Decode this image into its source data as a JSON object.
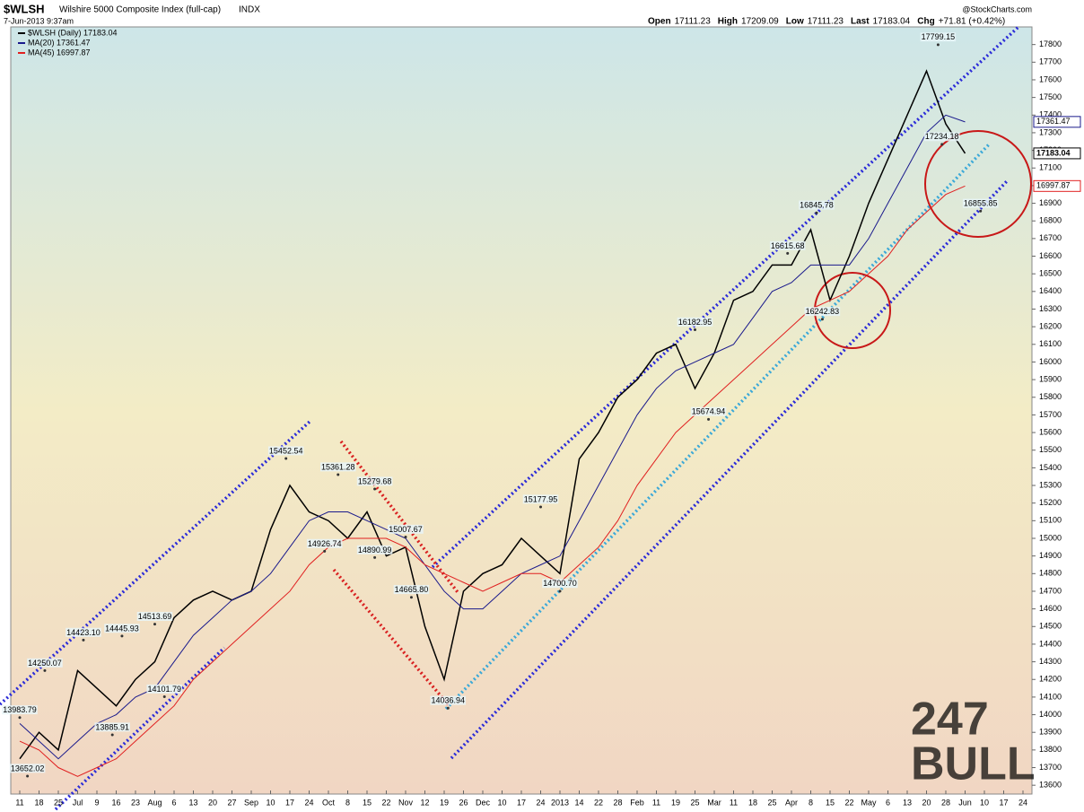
{
  "chart_data": {
    "type": "line",
    "symbol": "$WLSH",
    "title": "Wilshire 5000 Composite Index (full-cap)",
    "exchange": "INDX",
    "date": "7-Jun-2013 9:37am",
    "source": "@StockCharts.com",
    "stats": [
      {
        "label": "Open",
        "value": 17111.23
      },
      {
        "label": "High",
        "value": 17209.09
      },
      {
        "label": "Low",
        "value": 17111.23
      },
      {
        "label": "Last",
        "value": 17183.04
      },
      {
        "label": "Chg",
        "value": "+71.81 (+0.42%)"
      }
    ],
    "watermark": [
      "247",
      "BULL"
    ],
    "categories": [
      "11",
      "18",
      "25",
      "Jul",
      "9",
      "16",
      "23",
      "Aug",
      "6",
      "13",
      "20",
      "27",
      "Sep",
      "10",
      "17",
      "24",
      "Oct",
      "8",
      "15",
      "22",
      "Nov",
      "12",
      "19",
      "26",
      "Dec",
      "10",
      "17",
      "24",
      "2013",
      "14",
      "22",
      "28",
      "Feb",
      "11",
      "19",
      "25",
      "Mar",
      "11",
      "18",
      "25",
      "Apr",
      "8",
      "15",
      "22",
      "May",
      "6",
      "13",
      "20",
      "28",
      "Jun",
      "10",
      "17",
      "24"
    ],
    "series": [
      {
        "name": "$WLSH (Daily) 17183.04",
        "color": "#000000",
        "values": [
          13750,
          13900,
          13800,
          14250,
          14150,
          14050,
          14200,
          14300,
          14550,
          14650,
          14700,
          14650,
          14700,
          15050,
          15300,
          15150,
          15100,
          15000,
          15150,
          14900,
          14950,
          14500,
          14200,
          14700,
          14800,
          14850,
          15000,
          14900,
          14800,
          15450,
          15600,
          15800,
          15900,
          16050,
          16100,
          15850,
          16050,
          16350,
          16400,
          16550,
          16550,
          16750,
          16350,
          16600,
          16900,
          17150,
          17400,
          17650,
          17350,
          17183.04,
          null,
          null,
          null
        ]
      },
      {
        "name": "MA(20) 17361.47",
        "color": "#1a1a8c",
        "values": [
          13950,
          13850,
          13750,
          13850,
          13950,
          14000,
          14100,
          14150,
          14300,
          14450,
          14550,
          14650,
          14700,
          14800,
          14950,
          15100,
          15150,
          15150,
          15100,
          15050,
          15000,
          14850,
          14700,
          14600,
          14600,
          14700,
          14800,
          14850,
          14900,
          15100,
          15300,
          15500,
          15700,
          15850,
          15950,
          16000,
          16050,
          16100,
          16250,
          16400,
          16450,
          16550,
          16550,
          16550,
          16700,
          16900,
          17100,
          17300,
          17400,
          17361.47,
          null,
          null,
          null
        ]
      },
      {
        "name": "MA(45) 16997.87",
        "color": "#e02020",
        "values": [
          13850,
          13800,
          13700,
          13650,
          13700,
          13750,
          13850,
          13950,
          14050,
          14200,
          14300,
          14400,
          14500,
          14600,
          14700,
          14850,
          14950,
          15000,
          15000,
          15000,
          14950,
          14850,
          14800,
          14750,
          14700,
          14750,
          14800,
          14800,
          14750,
          14850,
          14950,
          15100,
          15300,
          15450,
          15600,
          15700,
          15800,
          15900,
          16000,
          16100,
          16200,
          16300,
          16350,
          16400,
          16500,
          16600,
          16750,
          16850,
          16950,
          16997.87,
          null,
          null,
          null
        ]
      }
    ],
    "annotations": [
      {
        "x": 0,
        "value": 13983.79
      },
      {
        "x": 1.3,
        "value": 14250.07
      },
      {
        "x": 3.3,
        "value": 14423.1,
        "label": "14423.10"
      },
      {
        "x": 5.3,
        "value": 14445.93
      },
      {
        "x": 7,
        "value": 14513.69
      },
      {
        "x": 4.8,
        "value": 13885.91
      },
      {
        "x": 7.5,
        "value": 14101.79
      },
      {
        "x": 0.4,
        "value": 13652.02
      },
      {
        "x": 13.8,
        "value": 15452.54
      },
      {
        "x": 16.5,
        "value": 15361.28
      },
      {
        "x": 18.4,
        "value": 15279.68
      },
      {
        "x": 20,
        "value": 15007.67
      },
      {
        "x": 15.8,
        "value": 14926.74
      },
      {
        "x": 18.4,
        "value": 14890.99
      },
      {
        "x": 20.3,
        "value": 14665.8,
        "label": "14665.80"
      },
      {
        "x": 22.2,
        "value": 14036.94
      },
      {
        "x": 27,
        "value": 15177.95
      },
      {
        "x": 28,
        "value": 14700.7,
        "label": "14700.70"
      },
      {
        "x": 35,
        "value": 16182.95
      },
      {
        "x": 35.7,
        "value": 15674.94
      },
      {
        "x": 39.8,
        "value": 16615.68
      },
      {
        "x": 41.3,
        "value": 16845.78
      },
      {
        "x": 41.6,
        "value": 16242.83
      },
      {
        "x": 47.6,
        "value": 17799.15
      },
      {
        "x": 47.8,
        "value": 17234.18
      },
      {
        "x": 49.8,
        "value": 16855.85
      }
    ],
    "ylim": [
      13550,
      17900
    ],
    "yticks": [
      13600,
      13700,
      13800,
      13900,
      14000,
      14100,
      14200,
      14300,
      14400,
      14500,
      14600,
      14700,
      14800,
      14900,
      15000,
      15100,
      15200,
      15300,
      15400,
      15500,
      15600,
      15700,
      15800,
      15900,
      16000,
      16100,
      16200,
      16300,
      16400,
      16500,
      16600,
      16700,
      16800,
      16900,
      17000,
      17100,
      17200,
      17300,
      17400,
      17500,
      17600,
      17700,
      17800
    ]
  }
}
